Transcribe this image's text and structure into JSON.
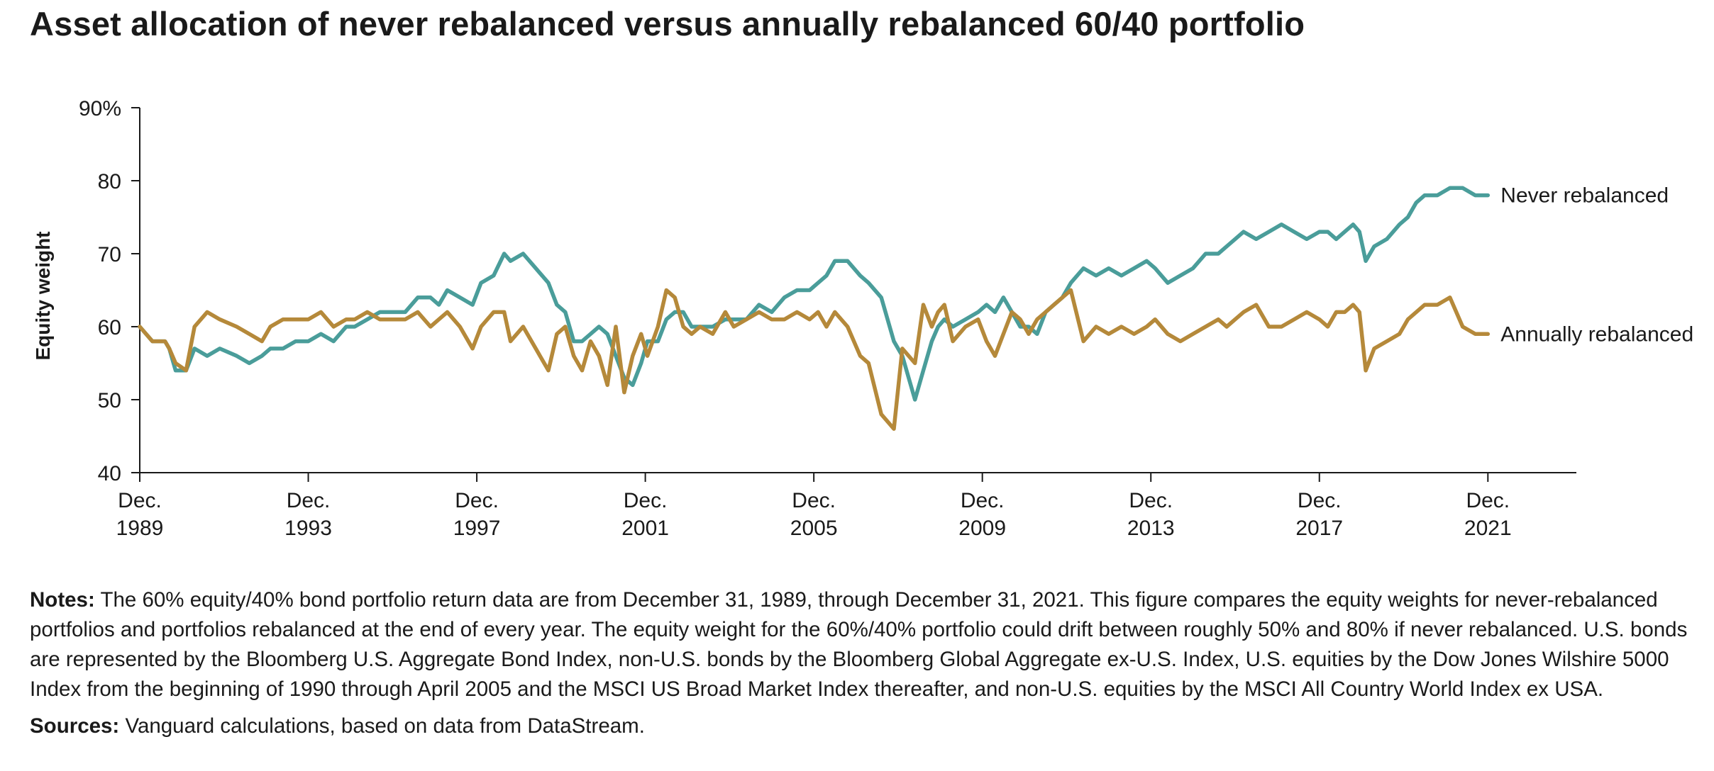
{
  "title": "Asset allocation of never rebalanced versus annually rebalanced 60/40 portfolio",
  "notes": {
    "label": "Notes:",
    "text": "The 60% equity/40% bond portfolio return data are from December 31, 1989, through December 31, 2021. This figure compares the equity weights for never-rebalanced portfolios and portfolios rebalanced at the end of every year. The equity weight for the 60%/40% portfolio could drift between roughly 50% and 80% if never rebalanced. U.S. bonds are represented by the Bloomberg U.S. Aggregate Bond Index, non-U.S. bonds by the Bloomberg Global Aggregate ex-U.S. Index, U.S. equities by the Dow Jones Wilshire 5000 Index from the beginning of 1990 through April 2005 and the MSCI US Broad Market Index thereafter, and non-U.S. equities by the MSCI All Country World Index ex USA."
  },
  "sources": {
    "label": "Sources:",
    "text": "Vanguard calculations, based on data from DataStream."
  },
  "colors": {
    "never": "#4a9d9a",
    "annual": "#b5893a",
    "axis": "#1a1a1a"
  },
  "chart_data": {
    "type": "line",
    "title": "Asset allocation of never rebalanced versus annually rebalanced 60/40 portfolio",
    "xlabel": "",
    "ylabel": "Equity weight",
    "xlim": [
      1989.9,
      2024
    ],
    "ylim": [
      40,
      90
    ],
    "yticks": [
      {
        "value": 90,
        "label": "90%"
      },
      {
        "value": 80,
        "label": "80"
      },
      {
        "value": 70,
        "label": "70"
      },
      {
        "value": 60,
        "label": "60"
      },
      {
        "value": 50,
        "label": "50"
      },
      {
        "value": 40,
        "label": "40"
      }
    ],
    "xticks": [
      {
        "value": 1989.9,
        "line1": "Dec.",
        "line2": "1989"
      },
      {
        "value": 1993.9,
        "line1": "Dec.",
        "line2": "1993"
      },
      {
        "value": 1997.9,
        "line1": "Dec.",
        "line2": "1997"
      },
      {
        "value": 2001.9,
        "line1": "Dec.",
        "line2": "2001"
      },
      {
        "value": 2005.9,
        "line1": "Dec.",
        "line2": "2005"
      },
      {
        "value": 2009.9,
        "line1": "Dec.",
        "line2": "2009"
      },
      {
        "value": 2013.9,
        "line1": "Dec.",
        "line2": "2013"
      },
      {
        "value": 2017.9,
        "line1": "Dec.",
        "line2": "2017"
      },
      {
        "value": 2021.9,
        "line1": "Dec.",
        "line2": "2021"
      }
    ],
    "grid": false,
    "series": [
      {
        "name": "Never rebalanced",
        "key": "never",
        "x": [
          1989.9,
          1990.2,
          1990.5,
          1990.6,
          1990.75,
          1991.0,
          1991.2,
          1991.5,
          1991.8,
          1992.2,
          1992.5,
          1992.8,
          1993.0,
          1993.3,
          1993.6,
          1993.9,
          1994.2,
          1994.5,
          1994.8,
          1995.0,
          1995.3,
          1995.6,
          1995.9,
          1996.2,
          1996.5,
          1996.8,
          1997.0,
          1997.2,
          1997.5,
          1997.8,
          1998.0,
          1998.3,
          1998.55,
          1998.7,
          1999.0,
          1999.3,
          1999.6,
          1999.8,
          2000.0,
          2000.2,
          2000.4,
          2000.6,
          2000.8,
          2001.0,
          2001.2,
          2001.4,
          2001.6,
          2001.8,
          2001.95,
          2002.2,
          2002.4,
          2002.6,
          2002.8,
          2003.0,
          2003.2,
          2003.5,
          2003.8,
          2004.0,
          2004.3,
          2004.6,
          2004.9,
          2005.2,
          2005.5,
          2005.8,
          2006.0,
          2006.2,
          2006.4,
          2006.7,
          2007.0,
          2007.2,
          2007.5,
          2007.8,
          2008.0,
          2008.3,
          2008.5,
          2008.7,
          2008.85,
          2009.0,
          2009.2,
          2009.5,
          2009.8,
          2010.0,
          2010.2,
          2010.4,
          2010.6,
          2010.8,
          2011.0,
          2011.2,
          2011.4,
          2011.6,
          2011.8,
          2012.0,
          2012.3,
          2012.6,
          2012.9,
          2013.2,
          2013.5,
          2013.8,
          2014.0,
          2014.3,
          2014.6,
          2014.9,
          2015.2,
          2015.5,
          2015.7,
          2015.9,
          2016.1,
          2016.4,
          2016.7,
          2017.0,
          2017.3,
          2017.6,
          2017.9,
          2018.1,
          2018.3,
          2018.5,
          2018.7,
          2018.85,
          2019.0,
          2019.2,
          2019.5,
          2019.8,
          2020.0,
          2020.2,
          2020.4,
          2020.7,
          2021.0,
          2021.3,
          2021.6,
          2021.9
        ],
        "y": [
          60,
          58,
          58,
          57,
          54,
          54,
          57,
          56,
          57,
          56,
          55,
          56,
          57,
          57,
          58,
          58,
          59,
          58,
          60,
          60,
          61,
          62,
          62,
          62,
          64,
          64,
          63,
          65,
          64,
          63,
          66,
          67,
          70,
          69,
          70,
          68,
          66,
          63,
          62,
          58,
          58,
          59,
          60,
          59,
          56,
          53,
          52,
          55,
          58,
          58,
          61,
          62,
          62,
          60,
          60,
          60,
          61,
          61,
          61,
          63,
          62,
          64,
          65,
          65,
          66,
          67,
          69,
          69,
          67,
          66,
          64,
          58,
          56,
          50,
          54,
          58,
          60,
          61,
          60,
          61,
          62,
          63,
          62,
          64,
          62,
          60,
          60,
          59,
          62,
          63,
          64,
          66,
          68,
          67,
          68,
          67,
          68,
          69,
          68,
          66,
          67,
          68,
          70,
          70,
          71,
          72,
          73,
          72,
          73,
          74,
          73,
          72,
          73,
          73,
          72,
          73,
          74,
          73,
          69,
          71,
          72,
          74,
          75,
          77,
          78,
          78,
          79,
          79,
          78,
          78
        ]
      },
      {
        "name": "Annually rebalanced",
        "key": "annual",
        "x": [
          1989.9,
          1990.2,
          1990.5,
          1990.6,
          1990.75,
          1991.0,
          1991.2,
          1991.5,
          1991.8,
          1992.2,
          1992.5,
          1992.8,
          1993.0,
          1993.3,
          1993.6,
          1993.9,
          1994.2,
          1994.5,
          1994.8,
          1995.0,
          1995.3,
          1995.6,
          1995.9,
          1996.2,
          1996.5,
          1996.8,
          1997.0,
          1997.2,
          1997.5,
          1997.8,
          1998.0,
          1998.3,
          1998.55,
          1998.7,
          1999.0,
          1999.3,
          1999.6,
          1999.8,
          2000.0,
          2000.2,
          2000.4,
          2000.6,
          2000.8,
          2001.0,
          2001.2,
          2001.4,
          2001.6,
          2001.8,
          2001.95,
          2002.2,
          2002.4,
          2002.6,
          2002.8,
          2003.0,
          2003.2,
          2003.5,
          2003.8,
          2004.0,
          2004.3,
          2004.6,
          2004.9,
          2005.2,
          2005.5,
          2005.8,
          2006.0,
          2006.2,
          2006.4,
          2006.7,
          2007.0,
          2007.2,
          2007.5,
          2007.8,
          2008.0,
          2008.3,
          2008.5,
          2008.7,
          2008.85,
          2009.0,
          2009.2,
          2009.5,
          2009.8,
          2010.0,
          2010.2,
          2010.4,
          2010.6,
          2010.8,
          2011.0,
          2011.2,
          2011.4,
          2011.6,
          2011.8,
          2012.0,
          2012.3,
          2012.6,
          2012.9,
          2013.2,
          2013.5,
          2013.8,
          2014.0,
          2014.3,
          2014.6,
          2014.9,
          2015.2,
          2015.5,
          2015.7,
          2015.9,
          2016.1,
          2016.4,
          2016.7,
          2017.0,
          2017.3,
          2017.6,
          2017.9,
          2018.1,
          2018.3,
          2018.5,
          2018.7,
          2018.85,
          2019.0,
          2019.2,
          2019.5,
          2019.8,
          2020.0,
          2020.2,
          2020.4,
          2020.7,
          2021.0,
          2021.3,
          2021.6,
          2021.9
        ],
        "y": [
          60,
          58,
          58,
          57,
          55,
          54,
          60,
          62,
          61,
          60,
          59,
          58,
          60,
          61,
          61,
          61,
          62,
          60,
          61,
          61,
          62,
          61,
          61,
          61,
          62,
          60,
          61,
          62,
          60,
          57,
          60,
          62,
          62,
          58,
          60,
          57,
          54,
          59,
          60,
          56,
          54,
          58,
          56,
          52,
          60,
          51,
          56,
          59,
          56,
          60,
          65,
          64,
          60,
          59,
          60,
          59,
          62,
          60,
          61,
          62,
          61,
          61,
          62,
          61,
          62,
          60,
          62,
          60,
          56,
          55,
          48,
          46,
          57,
          55,
          63,
          60,
          62,
          63,
          58,
          60,
          61,
          58,
          56,
          59,
          62,
          61,
          59,
          61,
          62,
          63,
          64,
          65,
          58,
          60,
          59,
          60,
          59,
          60,
          61,
          59,
          58,
          59,
          60,
          61,
          60,
          61,
          62,
          63,
          60,
          60,
          61,
          62,
          61,
          60,
          62,
          62,
          63,
          62,
          54,
          57,
          58,
          59,
          61,
          62,
          63,
          63,
          64,
          60,
          59,
          59
        ]
      }
    ],
    "annotations": [
      {
        "series": "never",
        "text": "Never rebalanced"
      },
      {
        "series": "annual",
        "text": "Annually rebalanced"
      }
    ]
  }
}
